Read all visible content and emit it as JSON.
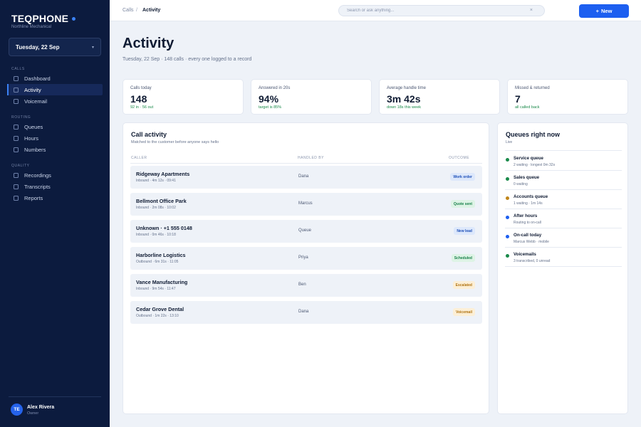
{
  "brand": {
    "name": "TEQPHONE",
    "subtitle": "Northline Mechanical"
  },
  "date_picker": {
    "value": "Tuesday, 22 Sep",
    "chevron": "▾"
  },
  "nav": {
    "sections": [
      {
        "label": "CALLS",
        "items": [
          {
            "label": "Dashboard",
            "active": false
          },
          {
            "label": "Activity",
            "active": true
          },
          {
            "label": "Voicemail",
            "active": false
          }
        ]
      },
      {
        "label": "ROUTING",
        "items": [
          {
            "label": "Queues",
            "active": false
          },
          {
            "label": "Hours",
            "active": false
          },
          {
            "label": "Numbers",
            "active": false
          }
        ]
      },
      {
        "label": "QUALITY",
        "items": [
          {
            "label": "Recordings",
            "active": false
          },
          {
            "label": "Transcripts",
            "active": false
          },
          {
            "label": "Reports",
            "active": false
          }
        ]
      }
    ]
  },
  "user": {
    "initials": "TE",
    "name": "Alex Rivera",
    "role": "Owner"
  },
  "breadcrumb": {
    "parent": "Calls",
    "separator": "/",
    "current": "Activity"
  },
  "search": {
    "placeholder": "Search or ask anything...",
    "value": "",
    "clear": "×"
  },
  "new_button": {
    "icon": "+",
    "label": "New"
  },
  "header": {
    "title": "Activity",
    "subtitle": "Tuesday, 22 Sep · 148 calls · every one logged to a record"
  },
  "kpis": [
    {
      "label": "Calls today",
      "value": "148",
      "note": "92 in · 56 out"
    },
    {
      "label": "Answered in 20s",
      "value": "94%",
      "note": "target is 85%"
    },
    {
      "label": "Average handle time",
      "value": "3m 42s",
      "note": "down 18s this week"
    },
    {
      "label": "Missed & returned",
      "value": "7",
      "note": "all called back"
    }
  ],
  "activity": {
    "title": "Call activity",
    "subtitle": "Matched to the customer before anyone says hello",
    "columns": {
      "caller": "CALLER",
      "handled_by": "HANDLED BY",
      "outcome": "OUTCOME"
    },
    "rows": [
      {
        "caller": "Ridgeway Apartments",
        "meta": "Inbound · 4m 12s · 09:41",
        "agent": "Dana",
        "outcome": "Work order",
        "tone": "blue"
      },
      {
        "caller": "Bellmont Office Park",
        "meta": "Inbound · 2m 08s · 10:02",
        "agent": "Marcus",
        "outcome": "Quote sent",
        "tone": "green"
      },
      {
        "caller": "Unknown · +1 555 0148",
        "meta": "Inbound · 0m 46s · 10:18",
        "agent": "Queue",
        "outcome": "New lead",
        "tone": "blue"
      },
      {
        "caller": "Harborline Logistics",
        "meta": "Outbound · 6m 31s · 11:05",
        "agent": "Priya",
        "outcome": "Scheduled",
        "tone": "green"
      },
      {
        "caller": "Vance Manufacturing",
        "meta": "Inbound · 9m 54s · 11:47",
        "agent": "Ben",
        "outcome": "Escalated",
        "tone": "amber"
      },
      {
        "caller": "Cedar Grove Dental",
        "meta": "Outbound · 1m 22s · 13:10",
        "agent": "Dana",
        "outcome": "Voicemail",
        "tone": "amber"
      }
    ]
  },
  "queues": {
    "title": "Queues right now",
    "status": "Live",
    "items": [
      {
        "name": "Service queue",
        "detail": "2 waiting · longest 0m 32s",
        "color": "#1a8a4a"
      },
      {
        "name": "Sales queue",
        "detail": "0 waiting",
        "color": "#1a8a4a"
      },
      {
        "name": "Accounts queue",
        "detail": "1 waiting · 1m 14s",
        "color": "#c0851a"
      },
      {
        "name": "After hours",
        "detail": "Routing to on-call",
        "color": "#1d5ff0"
      },
      {
        "name": "On-call today",
        "detail": "Marcus Webb · mobile",
        "color": "#1d5ff0"
      },
      {
        "name": "Voicemails",
        "detail": "3 transcribed, 0 unread",
        "color": "#1a8a4a"
      }
    ]
  },
  "tones": {
    "blue": {
      "bg": "#dde8fb",
      "fg": "#1d4fb8"
    },
    "green": {
      "bg": "#ddf3e5",
      "fg": "#18804a"
    },
    "amber": {
      "bg": "#fcefd6",
      "fg": "#b07312"
    }
  }
}
